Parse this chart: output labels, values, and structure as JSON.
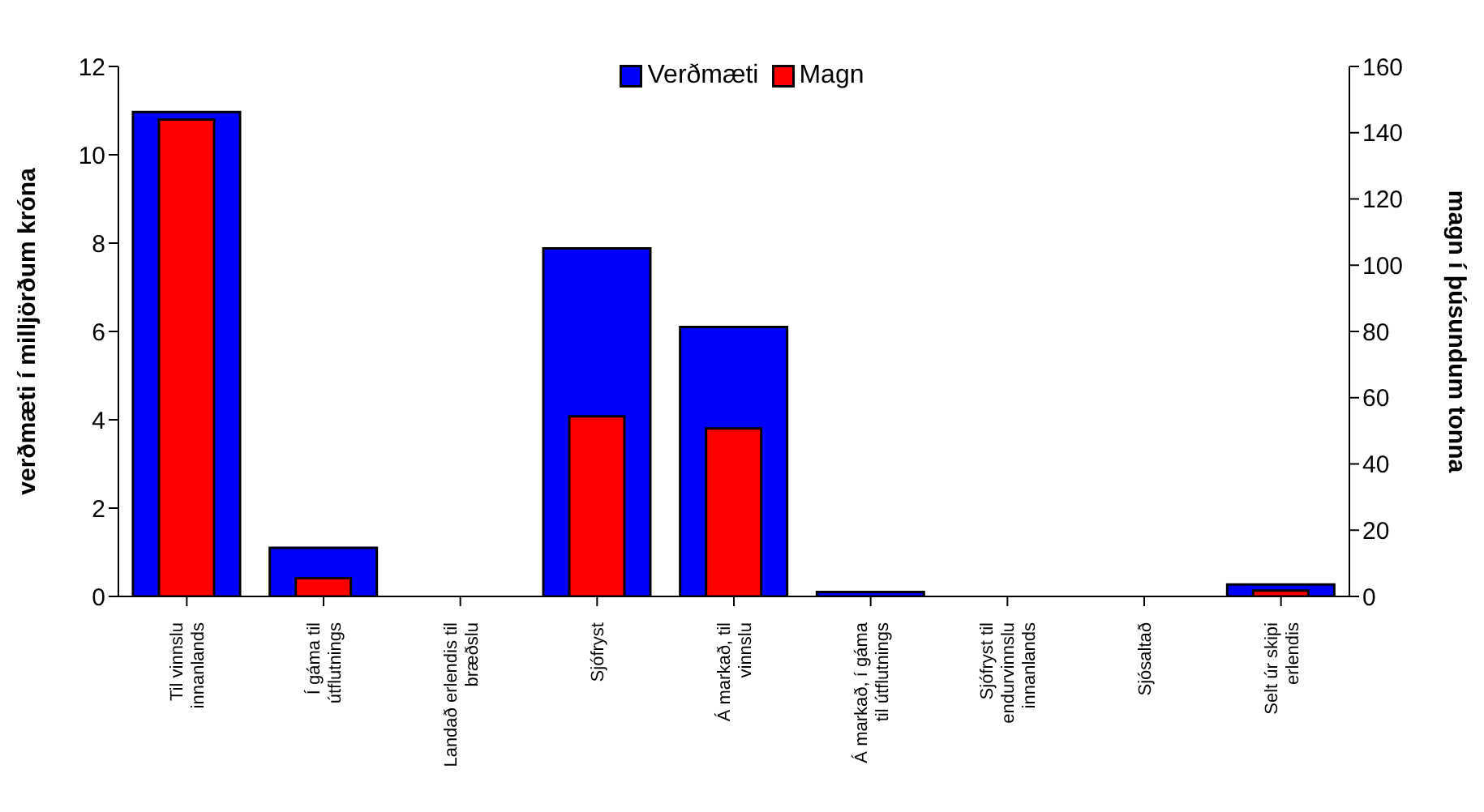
{
  "chart_data": {
    "type": "bar",
    "categories": [
      "Til vinnslu innanlands",
      "Í gáma til útflutnings",
      "Landað erlendis til bræðslu",
      "Sjófryst",
      "Á markað, til vinnslu",
      "Á markað, í gáma til útflutnings",
      "Sjófryst til endurvinnslu innanlands",
      "Sjósaltað",
      "Selt úr skipi erlendis"
    ],
    "series": [
      {
        "name": "Verðmæti",
        "color": "#0000ff",
        "values": [
          10.97,
          1.1,
          0,
          7.88,
          6.1,
          0.1,
          0,
          0,
          0.27
        ]
      },
      {
        "name": "Magn",
        "color": "#ff0000",
        "axis": "y2",
        "values": [
          144,
          5.5,
          0,
          54.4,
          50.7,
          null,
          0,
          0,
          1.8
        ]
      }
    ],
    "ylabel": "verðmæti í milljörðum króna",
    "y2label": "magn í þúsundum tonna",
    "ylim": [
      0,
      12
    ],
    "yticks": [
      0,
      2,
      4,
      6,
      8,
      10,
      12
    ],
    "y2lim": [
      0,
      160
    ],
    "y2ticks": [
      0,
      20,
      40,
      60,
      80,
      100,
      120,
      140,
      160
    ],
    "legend": "top",
    "grid": false
  }
}
